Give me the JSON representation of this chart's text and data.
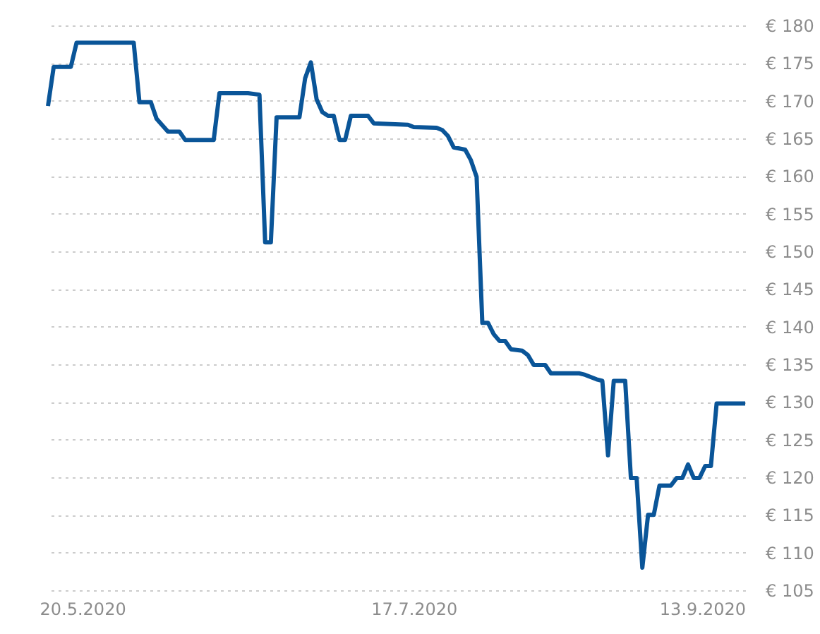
{
  "chart_data": {
    "type": "line",
    "x": [
      "2020-05-14",
      "2020-05-15",
      "2020-05-18",
      "2020-05-19",
      "2020-05-29",
      "2020-05-30",
      "2020-06-01",
      "2020-06-02",
      "2020-06-04",
      "2020-06-06",
      "2020-06-07",
      "2020-06-12",
      "2020-06-13",
      "2020-06-18",
      "2020-06-20",
      "2020-06-21",
      "2020-06-22",
      "2020-06-23",
      "2020-06-27",
      "2020-06-28",
      "2020-06-29",
      "2020-06-30",
      "2020-07-01",
      "2020-07-02",
      "2020-07-03",
      "2020-07-04",
      "2020-07-05",
      "2020-07-06",
      "2020-07-09",
      "2020-07-10",
      "2020-07-16",
      "2020-07-17",
      "2020-07-21",
      "2020-07-22",
      "2020-07-23",
      "2020-07-24",
      "2020-07-26",
      "2020-07-27",
      "2020-07-28",
      "2020-07-29",
      "2020-07-30",
      "2020-07-31",
      "2020-08-01",
      "2020-08-02",
      "2020-08-03",
      "2020-08-05",
      "2020-08-06",
      "2020-08-07",
      "2020-08-09",
      "2020-08-10",
      "2020-08-15",
      "2020-08-16",
      "2020-08-18",
      "2020-08-19",
      "2020-08-20",
      "2020-08-21",
      "2020-08-23",
      "2020-08-24",
      "2020-08-25",
      "2020-08-26",
      "2020-08-27",
      "2020-08-28",
      "2020-08-29",
      "2020-08-31",
      "2020-09-01",
      "2020-09-02",
      "2020-09-03",
      "2020-09-04",
      "2020-09-05",
      "2020-09-06",
      "2020-09-07",
      "2020-09-08",
      "2020-09-13"
    ],
    "series": [
      {
        "color": "#0a5598",
        "values": [
          169.3,
          174.5,
          174.5,
          177.7,
          177.7,
          169.8,
          169.8,
          167.6,
          165.9,
          165.9,
          164.8,
          164.8,
          171,
          171,
          170.8,
          151.2,
          151.2,
          167.8,
          167.8,
          173,
          175.1,
          170.2,
          168.5,
          168,
          168,
          164.8,
          164.8,
          168,
          168,
          167,
          166.8,
          166.5,
          166.4,
          166.1,
          165.3,
          163.8,
          163.5,
          162.1,
          159.9,
          140.5,
          140.5,
          139,
          138.1,
          138.1,
          137,
          136.8,
          136.2,
          134.9,
          134.9,
          133.8,
          133.8,
          133.6,
          133,
          132.8,
          122.9,
          132.8,
          132.8,
          119.9,
          119.9,
          108,
          115,
          115,
          118.9,
          118.9,
          119.9,
          119.9,
          121.7,
          119.9,
          119.9,
          121.5,
          121.5,
          129.8,
          129.8
        ]
      }
    ],
    "xlim": [
      "2020-05-14",
      "2020-09-13"
    ],
    "xticks": [
      {
        "value": "2020-05-20",
        "label": "20.5.2020"
      },
      {
        "value": "2020-07-17",
        "label": "17.7.2020"
      },
      {
        "value": "2020-09-13",
        "label": "13.9.2020"
      }
    ],
    "ylim": [
      105,
      180
    ],
    "yticks": [
      {
        "value": 105,
        "label": "€ 105"
      },
      {
        "value": 110,
        "label": "€ 110"
      },
      {
        "value": 115,
        "label": "€ 115"
      },
      {
        "value": 120,
        "label": "€ 120"
      },
      {
        "value": 125,
        "label": "€ 125"
      },
      {
        "value": 130,
        "label": "€ 130"
      },
      {
        "value": 135,
        "label": "€ 135"
      },
      {
        "value": 140,
        "label": "€ 140"
      },
      {
        "value": 145,
        "label": "€ 145"
      },
      {
        "value": 150,
        "label": "€ 150"
      },
      {
        "value": 155,
        "label": "€ 155"
      },
      {
        "value": 160,
        "label": "€ 160"
      },
      {
        "value": 165,
        "label": "€ 165"
      },
      {
        "value": 170,
        "label": "€ 170"
      },
      {
        "value": 175,
        "label": "€ 175"
      },
      {
        "value": 180,
        "label": "€ 180"
      }
    ],
    "grid": "y",
    "legend": false,
    "marker": "none",
    "line_style": "solid"
  }
}
